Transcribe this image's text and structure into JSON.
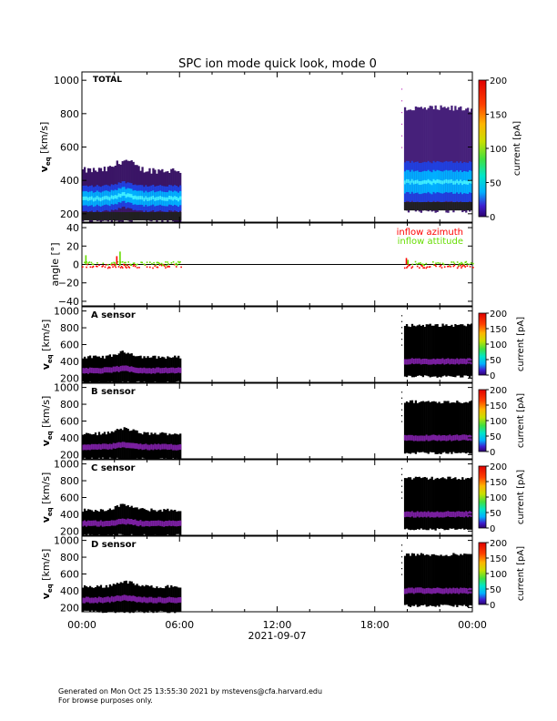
{
  "chart_data": {
    "type": "heatmap",
    "title": "SPC ion mode quick look, mode 0",
    "date_label": "2021-09-07",
    "x_ticks": [
      "00:00",
      "06:00",
      "12:00",
      "18:00",
      "00:00"
    ],
    "x_range_hours": [
      0,
      24
    ],
    "data_intervals_hours": [
      [
        0.0,
        6.1
      ],
      [
        19.8,
        24.0
      ]
    ],
    "colorbar": {
      "label": "current [pA]",
      "ticks": [
        "0",
        "50",
        "100",
        "150",
        "200"
      ],
      "range": [
        0,
        200
      ],
      "scale": "linear"
    },
    "velocity_ylabel_main": "v",
    "velocity_ylabel_sub": "eq",
    "velocity_ylabel_unit": " [km/s]",
    "panels": [
      {
        "label": "TOTAL",
        "ylim": [
          150,
          1050
        ],
        "yticks": [
          "200",
          "400",
          "600",
          "800",
          "1000"
        ],
        "segments": [
          {
            "x": [
              0.0,
              6.1
            ],
            "upper_envelope_kms": 460,
            "lower_envelope_kms": 160,
            "core_speed_kms": 290
          },
          {
            "x": [
              19.8,
              24.0
            ],
            "upper_envelope_kms": 830,
            "lower_envelope_kms": 220,
            "core_speed_kms": 390
          }
        ]
      },
      {
        "label": "A sensor",
        "ylim": [
          150,
          1050
        ],
        "yticks": [
          "200",
          "400",
          "600",
          "800",
          "1000"
        ],
        "segments": [
          {
            "x": [
              0.0,
              6.1
            ],
            "upper_envelope_kms": 450,
            "lower_envelope_kms": 150,
            "core_speed_kms": 290
          },
          {
            "x": [
              19.8,
              24.0
            ],
            "upper_envelope_kms": 830,
            "lower_envelope_kms": 220,
            "core_speed_kms": 400
          }
        ]
      },
      {
        "label": "B sensor",
        "ylim": [
          150,
          1050
        ],
        "yticks": [
          "200",
          "400",
          "600",
          "800",
          "1000"
        ],
        "segments": [
          {
            "x": [
              0.0,
              6.1
            ],
            "upper_envelope_kms": 450,
            "lower_envelope_kms": 150,
            "core_speed_kms": 290
          },
          {
            "x": [
              19.8,
              24.0
            ],
            "upper_envelope_kms": 830,
            "lower_envelope_kms": 220,
            "core_speed_kms": 400
          }
        ]
      },
      {
        "label": "C sensor",
        "ylim": [
          150,
          1050
        ],
        "yticks": [
          "200",
          "400",
          "600",
          "800",
          "1000"
        ],
        "segments": [
          {
            "x": [
              0.0,
              6.1
            ],
            "upper_envelope_kms": 450,
            "lower_envelope_kms": 150,
            "core_speed_kms": 290
          },
          {
            "x": [
              19.8,
              24.0
            ],
            "upper_envelope_kms": 830,
            "lower_envelope_kms": 220,
            "core_speed_kms": 400
          }
        ]
      },
      {
        "label": "D sensor",
        "ylim": [
          150,
          1050
        ],
        "yticks": [
          "200",
          "400",
          "600",
          "800",
          "1000"
        ],
        "segments": [
          {
            "x": [
              0.0,
              6.1
            ],
            "upper_envelope_kms": 450,
            "lower_envelope_kms": 150,
            "core_speed_kms": 290
          },
          {
            "x": [
              19.8,
              24.0
            ],
            "upper_envelope_kms": 830,
            "lower_envelope_kms": 220,
            "core_speed_kms": 400
          }
        ]
      }
    ],
    "angle_panel": {
      "ylabel": "angle [°]",
      "ylim": [
        -45,
        45
      ],
      "yticks": [
        "40",
        "20",
        "0",
        "−20",
        "−40"
      ],
      "zero_line": true,
      "legend_placement": "top-right",
      "series": [
        {
          "name": "inflow azimuth",
          "color": "#ff0000",
          "approx_value_deg": -2
        },
        {
          "name": "inflow attitude",
          "color": "#66dd00",
          "approx_value_deg": 1
        }
      ]
    }
  },
  "footer": {
    "line1": "Generated on Mon Oct 25 13:55:30 2021 by mstevens@cfa.harvard.edu",
    "line2": "For browse purposes only."
  }
}
